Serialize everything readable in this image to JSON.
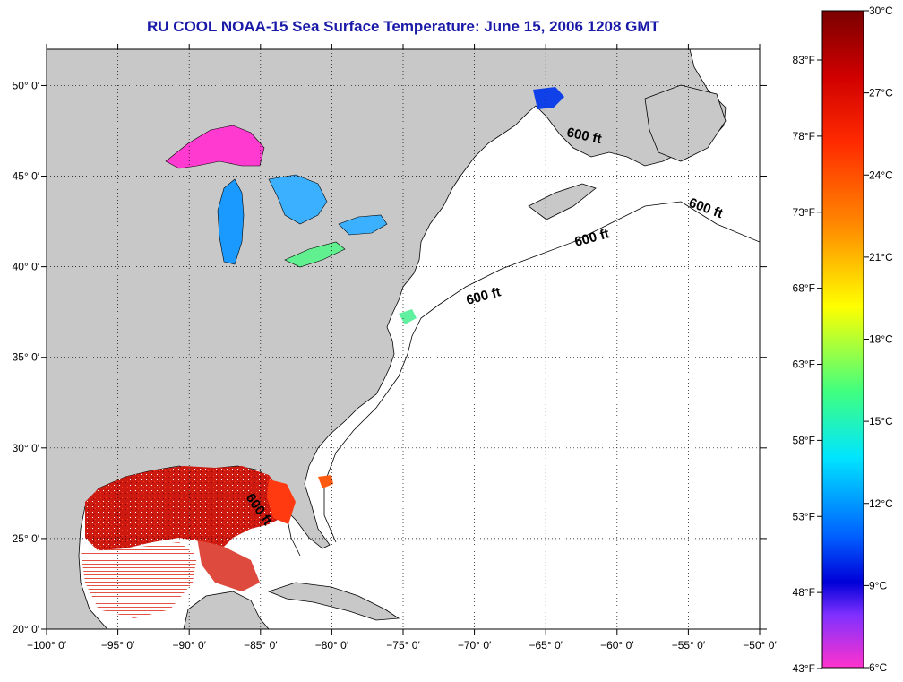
{
  "title": "RU COOL  NOAA-15  Sea Surface Temperature:  June 15, 2006 1208 GMT",
  "map": {
    "lon_range": [
      -100,
      -50
    ],
    "lat_range": [
      20,
      52
    ],
    "grid": true,
    "x_ticks": [
      {
        "value": -100,
        "label": "−100° 0′"
      },
      {
        "value": -95,
        "label": "−95° 0′"
      },
      {
        "value": -90,
        "label": "−90° 0′"
      },
      {
        "value": -85,
        "label": "−85° 0′"
      },
      {
        "value": -80,
        "label": "−80° 0′"
      },
      {
        "value": -75,
        "label": "−75° 0′"
      },
      {
        "value": -70,
        "label": "−70° 0′"
      },
      {
        "value": -65,
        "label": "−65° 0′"
      },
      {
        "value": -60,
        "label": "−60° 0′"
      },
      {
        "value": -55,
        "label": "−55° 0′"
      },
      {
        "value": -50,
        "label": "−50° 0′"
      }
    ],
    "y_ticks": [
      {
        "value": 20,
        "label": "20° 0′"
      },
      {
        "value": 25,
        "label": "25° 0′"
      },
      {
        "value": 30,
        "label": "30° 0′"
      },
      {
        "value": 35,
        "label": "35° 0′"
      },
      {
        "value": 40,
        "label": "40° 0′"
      },
      {
        "value": 45,
        "label": "45° 0′"
      },
      {
        "value": 50,
        "label": "50° 0′"
      }
    ],
    "land_color": "#c8c8c8",
    "ocean_color": "#ffffff",
    "contour_labels": [
      "600 ft",
      "600 ft",
      "600 ft",
      "600 ft",
      "600 ft"
    ]
  },
  "colorbar": {
    "celsius_labels": [
      "30°C",
      "27°C",
      "24°C",
      "21°C",
      "18°C",
      "15°C",
      "12°C",
      "9°C",
      "6°C"
    ],
    "fahrenheit_labels": [
      "83°F",
      "78°F",
      "73°F",
      "68°F",
      "63°F",
      "58°F",
      "53°F",
      "48°F",
      "43°F"
    ],
    "colors": [
      "#8b0000",
      "#ff1a1a",
      "#ff8c00",
      "#ffff00",
      "#40ff80",
      "#00e5ff",
      "#0060ff",
      "#0000cc",
      "#8030ff",
      "#ff33cc"
    ]
  }
}
